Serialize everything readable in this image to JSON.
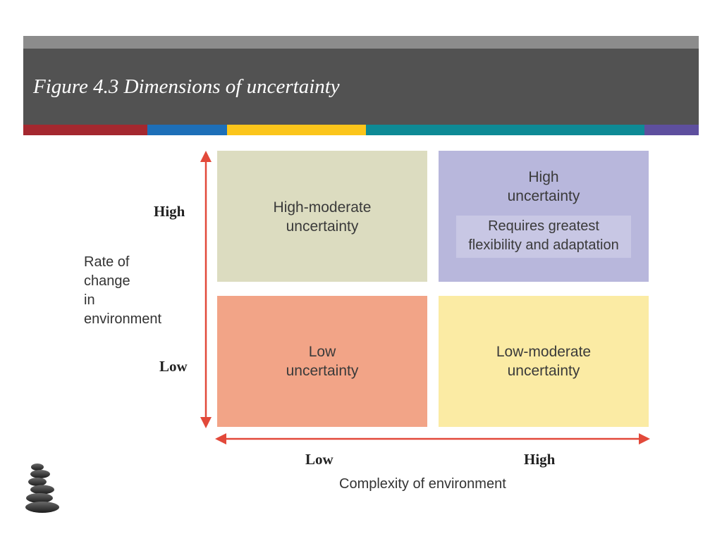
{
  "slide": {
    "title": "Figure 4.3 Dimensions of uncertainty",
    "colors": {
      "header_bg": "#525252",
      "header_top_strip": "#8c8c8c",
      "arrow": "#e2493a"
    },
    "color_bar": [
      {
        "color": "#a4282f",
        "share": 18.4
      },
      {
        "color": "#1d6fb8",
        "share": 11.8
      },
      {
        "color": "#fbc51b",
        "share": 20.5
      },
      {
        "color": "#0e8a95",
        "share": 41.3
      },
      {
        "color": "#5e4f9e",
        "share": 8.0
      }
    ]
  },
  "diagram": {
    "quadrants": {
      "top_left": {
        "text": [
          "High-moderate",
          "uncertainty"
        ],
        "color": "#dcdcc0"
      },
      "top_right": {
        "text": [
          "High",
          "uncertainty"
        ],
        "note": [
          "Requires greatest",
          "flexibility and adaptation"
        ],
        "color": "#b8b7dc",
        "note_color": "#c8c7e4"
      },
      "bottom_left": {
        "text": [
          "Low",
          "uncertainty"
        ],
        "color": "#f2a487"
      },
      "bottom_right": {
        "text": [
          "Low-moderate",
          "uncertainty"
        ],
        "color": "#fbeba4"
      }
    },
    "y_axis": {
      "title": [
        "Rate of",
        "change",
        "in",
        "environment"
      ],
      "high_label": "High",
      "low_label": "Low"
    },
    "x_axis": {
      "title": "Complexity of environment",
      "low_label": "Low",
      "high_label": "High"
    }
  },
  "decoration": {
    "logo": "stacked-stones-icon"
  }
}
